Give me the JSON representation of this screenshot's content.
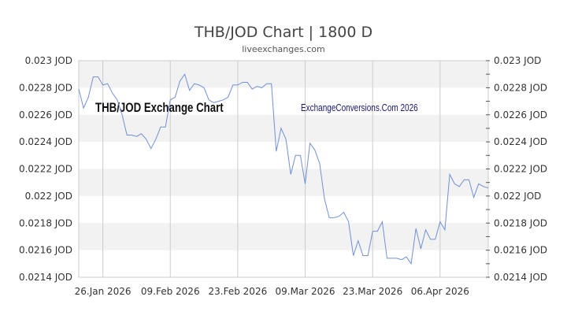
{
  "chart_data": {
    "type": "line",
    "title": "THB/JOD Chart | 1800 D",
    "subtitle": "liveexchanges.com",
    "watermarks": [
      "THB/JOD Exchange Chart",
      "ExchangeConversions.Com 2026"
    ],
    "xlabel": "",
    "ylabel": "",
    "start_date": "2026-01-21",
    "x_ticks": [
      {
        "date": "2026-01-26",
        "label": "26.Jan 2026"
      },
      {
        "date": "2026-02-09",
        "label": "09.Feb 2026"
      },
      {
        "date": "2026-02-23",
        "label": "23.Feb 2026"
      },
      {
        "date": "2026-03-09",
        "label": "09.Mar 2026"
      },
      {
        "date": "2026-03-23",
        "label": "23.Mar 2026"
      },
      {
        "date": "2026-04-06",
        "label": "06.Apr 2026"
      }
    ],
    "y_ticks": [
      {
        "value": 0.023,
        "label": "0.023 JOD"
      },
      {
        "value": 0.0228,
        "label": "0.0228 JOD"
      },
      {
        "value": 0.0226,
        "label": "0.0226 JOD"
      },
      {
        "value": 0.0224,
        "label": "0.0224 JOD"
      },
      {
        "value": 0.0222,
        "label": "0.0222 JOD"
      },
      {
        "value": 0.022,
        "label": "0.022 JOD"
      },
      {
        "value": 0.0218,
        "label": "0.0218 JOD"
      },
      {
        "value": 0.0216,
        "label": "0.0216 JOD"
      },
      {
        "value": 0.0214,
        "label": "0.0214 JOD"
      }
    ],
    "ylim": [
      0.0214,
      0.023
    ],
    "xlim": [
      "2026-01-21",
      "2026-04-16"
    ],
    "grid": true,
    "legend": "none",
    "colors": {
      "line": "#7090d8",
      "band": "#f2f2f2",
      "grid": "#cccccc",
      "axis": "#bbbbbb"
    },
    "series": [
      {
        "values": [
          0.02279,
          0.02265,
          0.02273,
          0.02288,
          0.02288,
          0.02282,
          0.02283,
          0.02276,
          0.02271,
          0.0226,
          0.02245,
          0.02245,
          0.02244,
          0.02246,
          0.02242,
          0.02235,
          0.02242,
          0.02251,
          0.02251,
          0.02271,
          0.02273,
          0.02285,
          0.0229,
          0.02278,
          0.02283,
          0.02282,
          0.0228,
          0.02271,
          0.02269,
          0.0227,
          0.02271,
          0.02273,
          0.02282,
          0.02282,
          0.02284,
          0.02284,
          0.02279,
          0.02281,
          0.0228,
          0.02283,
          0.02283,
          0.02233,
          0.0225,
          0.02242,
          0.02216,
          0.0223,
          0.0223,
          0.02209,
          0.02239,
          0.02234,
          0.02224,
          0.02198,
          0.02184,
          0.02184,
          0.02185,
          0.02188,
          0.02181,
          0.02156,
          0.02167,
          0.02156,
          0.02156,
          0.02174,
          0.02174,
          0.02181,
          0.02154,
          0.02154,
          0.02154,
          0.02153,
          0.02155,
          0.0215,
          0.02176,
          0.02161,
          0.02175,
          0.02168,
          0.02168,
          0.02181,
          0.02175,
          0.02216,
          0.02209,
          0.02207,
          0.02212,
          0.02212,
          0.02199,
          0.02209,
          0.02207,
          0.02206
        ]
      }
    ]
  }
}
